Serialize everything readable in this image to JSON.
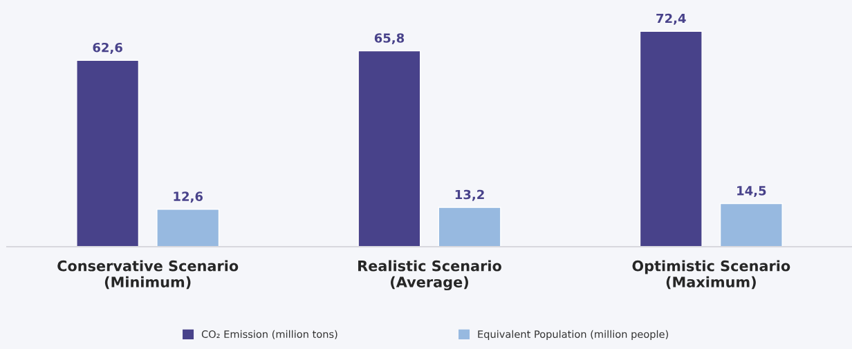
{
  "chart_data": {
    "type": "bar",
    "categories": [
      "Conservative Scenario\n(Minimum)",
      "Realistic Scenario\n(Average)",
      "Optimistic Scenario\n(Maximum)"
    ],
    "series": [
      {
        "name": "CO₂ Emission (million tons)",
        "color": "#48428a",
        "values": [
          62.6,
          65.8,
          72.4
        ],
        "value_labels": [
          "62,6",
          "65,8",
          "72,4"
        ]
      },
      {
        "name": "Equivalent Population (million people)",
        "color": "#97b9e0",
        "values": [
          12.6,
          13.2,
          14.5
        ],
        "value_labels": [
          "12,6",
          "13,2",
          "14,5"
        ]
      }
    ],
    "tick_labels": "x",
    "legend": "bottom",
    "grid": false
  }
}
